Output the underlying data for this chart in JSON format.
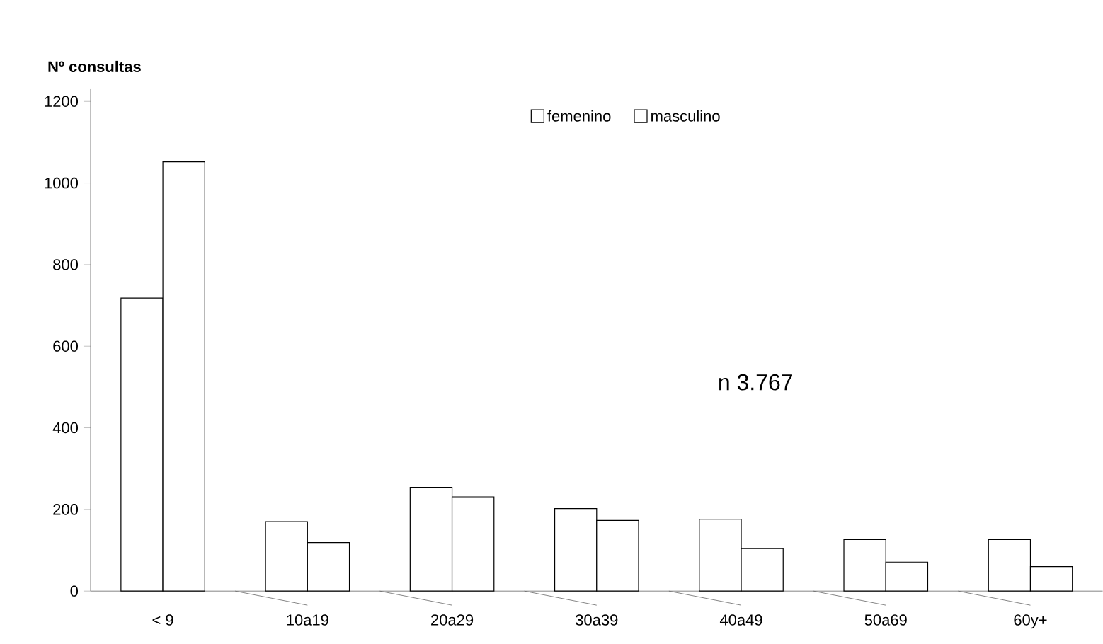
{
  "chart_data": {
    "type": "bar",
    "title": "Nº consultas",
    "categories": [
      "< 9",
      "10a19",
      "20a29",
      "30a39",
      "40a49",
      "50a69",
      "60y+"
    ],
    "series": [
      {
        "name": "femenino",
        "color": "#ffffff",
        "values": [
          718,
          170,
          254,
          202,
          176,
          126,
          126
        ]
      },
      {
        "name": "masculino",
        "color": "#ffffff",
        "values": [
          1052,
          119,
          231,
          173,
          104,
          71,
          60
        ]
      }
    ],
    "ylim": [
      0,
      1230
    ],
    "yticks": [
      0,
      200,
      400,
      600,
      800,
      1000,
      1200
    ],
    "legend": "top",
    "grid": false,
    "annotations": [
      "n 3.767"
    ]
  }
}
